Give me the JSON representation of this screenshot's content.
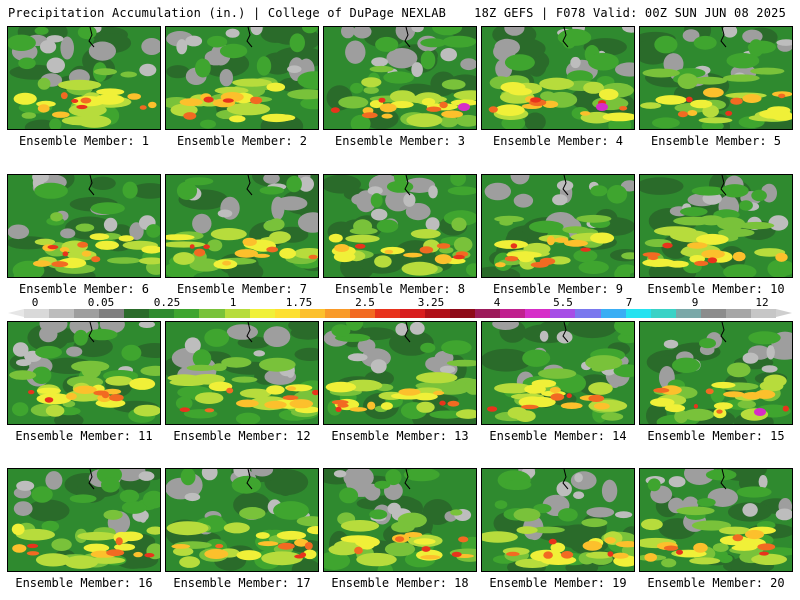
{
  "header": {
    "title_left": "Precipitation Accumulation (in.) | College of DuPage NEXLAB",
    "title_right": "18Z GEFS | F078 Valid: 00Z SUN JUN 08 2025"
  },
  "panels": [
    {
      "label": "Ensemble Member: 1"
    },
    {
      "label": "Ensemble Member: 2"
    },
    {
      "label": "Ensemble Member: 3"
    },
    {
      "label": "Ensemble Member: 4"
    },
    {
      "label": "Ensemble Member: 5"
    },
    {
      "label": "Ensemble Member: 6"
    },
    {
      "label": "Ensemble Member: 7"
    },
    {
      "label": "Ensemble Member: 8"
    },
    {
      "label": "Ensemble Member: 9"
    },
    {
      "label": "Ensemble Member: 10"
    },
    {
      "label": "Ensemble Member: 11"
    },
    {
      "label": "Ensemble Member: 12"
    },
    {
      "label": "Ensemble Member: 13"
    },
    {
      "label": "Ensemble Member: 14"
    },
    {
      "label": "Ensemble Member: 15"
    },
    {
      "label": "Ensemble Member: 16"
    },
    {
      "label": "Ensemble Member: 17"
    },
    {
      "label": "Ensemble Member: 18"
    },
    {
      "label": "Ensemble Member: 19"
    },
    {
      "label": "Ensemble Member: 20"
    }
  ],
  "colorbar": {
    "tick_labels": [
      "0",
      "0.05",
      "0.25",
      "1",
      "1.75",
      "2.5",
      "3.25",
      "4",
      "5.5",
      "7",
      "9",
      "12"
    ],
    "colors": [
      "#d9d9d9",
      "#bdbdbd",
      "#9e9e9e",
      "#7f7f7f",
      "#2a6b2a",
      "#2f8a2f",
      "#3fa52f",
      "#79c23a",
      "#b7dc3c",
      "#f0f038",
      "#fde030",
      "#fcc02c",
      "#f99a28",
      "#f26a22",
      "#e8331c",
      "#d81e1e",
      "#b01018",
      "#8e0a18",
      "#9c1a5a",
      "#c0208e",
      "#d62dc8",
      "#a64ee6",
      "#7a78ee",
      "#3aaef4",
      "#26e2f0",
      "#3ad2c6",
      "#7aa8a8",
      "#8c8c8c",
      "#a6a6a6",
      "#c6c6c6"
    ],
    "legend_colors": {
      "none": "#9e9e9e",
      "light": "#2f8a2f",
      "moderate": "#f0f038",
      "heavy": "#e8331c",
      "extreme": "#d62dc8"
    }
  }
}
